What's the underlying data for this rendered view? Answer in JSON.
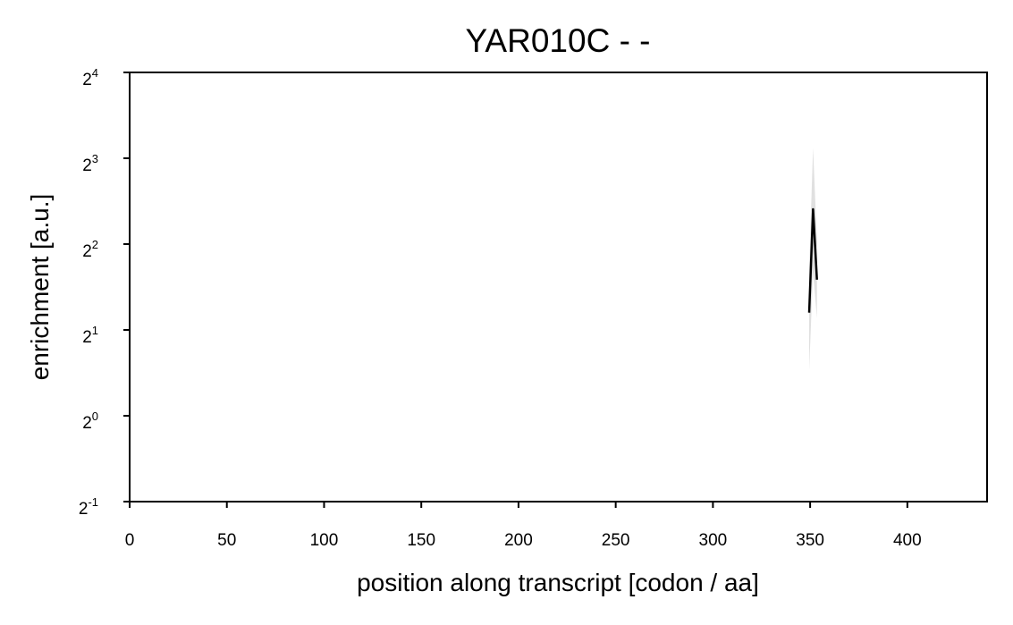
{
  "chart_data": {
    "type": "line",
    "title": "YAR010C - -",
    "xlabel": "position along transcript [codon / aa]",
    "ylabel": "enrichment [a.u.]",
    "xlim": [
      0,
      441
    ],
    "ylim_log2": [
      -1,
      4
    ],
    "y_scale": "log2",
    "x_ticks": [
      0,
      50,
      100,
      150,
      200,
      250,
      300,
      350,
      400
    ],
    "y_ticks": [
      {
        "base": "2",
        "exp": "-1",
        "log2": -1
      },
      {
        "base": "2",
        "exp": "0",
        "log2": 0
      },
      {
        "base": "2",
        "exp": "1",
        "log2": 1
      },
      {
        "base": "2",
        "exp": "2",
        "log2": 2
      },
      {
        "base": "2",
        "exp": "3",
        "log2": 3
      },
      {
        "base": "2",
        "exp": "4",
        "log2": 4
      }
    ],
    "grid": false,
    "series": [
      {
        "color": "#000000",
        "band_color": "#cccccc",
        "points": [
          {
            "x": 349.5,
            "y": 2.3,
            "y_low": 1.45,
            "y_high": 3.3
          },
          {
            "x": 351.5,
            "y": 5.3,
            "y_low": 3.2,
            "y_high": 8.7
          },
          {
            "x": 353.5,
            "y": 3.0,
            "y_low": 2.2,
            "y_high": 4.1
          }
        ]
      }
    ]
  }
}
